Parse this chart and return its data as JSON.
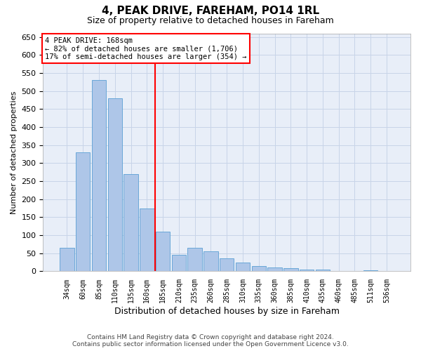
{
  "title": "4, PEAK DRIVE, FAREHAM, PO14 1RL",
  "subtitle": "Size of property relative to detached houses in Fareham",
  "xlabel": "Distribution of detached houses by size in Fareham",
  "ylabel": "Number of detached properties",
  "categories": [
    "34sqm",
    "60sqm",
    "85sqm",
    "110sqm",
    "135sqm",
    "160sqm",
    "185sqm",
    "210sqm",
    "235sqm",
    "260sqm",
    "285sqm",
    "310sqm",
    "335sqm",
    "360sqm",
    "385sqm",
    "410sqm",
    "435sqm",
    "460sqm",
    "485sqm",
    "511sqm",
    "536sqm"
  ],
  "values": [
    65,
    330,
    530,
    480,
    270,
    175,
    110,
    45,
    65,
    55,
    35,
    25,
    15,
    10,
    8,
    5,
    4,
    1,
    1,
    2,
    1
  ],
  "bar_color": "#aec6e8",
  "bar_edge_color": "#5a9fd4",
  "grid_color": "#c8d4e8",
  "background_color": "#e8eef8",
  "annotation_box_text": "4 PEAK DRIVE: 168sqm\n← 82% of detached houses are smaller (1,706)\n17% of semi-detached houses are larger (354) →",
  "redline_x": 5.5,
  "ylim": [
    0,
    660
  ],
  "yticks": [
    0,
    50,
    100,
    150,
    200,
    250,
    300,
    350,
    400,
    450,
    500,
    550,
    600,
    650
  ],
  "footer_line1": "Contains HM Land Registry data © Crown copyright and database right 2024.",
  "footer_line2": "Contains public sector information licensed under the Open Government Licence v3.0."
}
